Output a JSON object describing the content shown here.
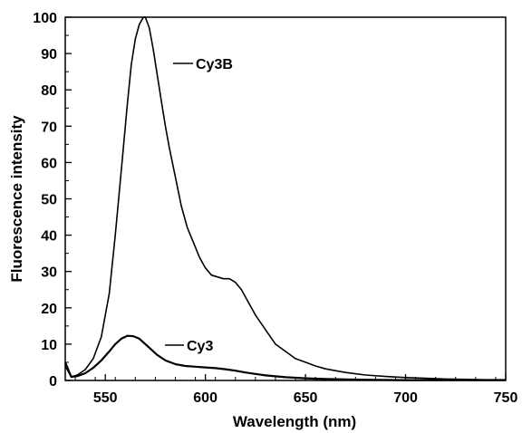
{
  "chart_data": {
    "type": "line",
    "title": "",
    "xlabel": "Wavelength (nm)",
    "ylabel": "Fluorescence intensity",
    "xlim": [
      530,
      750
    ],
    "ylim": [
      0,
      100
    ],
    "x_ticks": [
      550,
      600,
      650,
      700,
      750
    ],
    "y_ticks": [
      0,
      10,
      20,
      30,
      40,
      50,
      60,
      70,
      80,
      90,
      100
    ],
    "grid": false,
    "series": [
      {
        "name": "Cy3B",
        "x": [
          530,
          533,
          536,
          540,
          544,
          548,
          552,
          555,
          558,
          561,
          563,
          565,
          567,
          569,
          570,
          572,
          574,
          576,
          578,
          580,
          582,
          585,
          588,
          591,
          594,
          597,
          600,
          603,
          606,
          609,
          612,
          615,
          618,
          621,
          625,
          630,
          635,
          640,
          645,
          650,
          655,
          660,
          665,
          670,
          680,
          690,
          700,
          710,
          720,
          730,
          740,
          750
        ],
        "y": [
          4,
          1,
          1.5,
          3,
          6,
          12,
          24,
          40,
          58,
          76,
          87,
          94,
          98,
          100,
          100,
          97,
          91,
          84,
          77,
          70,
          64,
          56,
          48,
          42,
          38,
          34,
          31,
          29,
          28.5,
          28,
          28,
          27,
          25,
          22,
          18,
          14,
          10,
          8,
          6,
          5,
          4,
          3.2,
          2.7,
          2.2,
          1.5,
          1.1,
          0.8,
          0.6,
          0.4,
          0.3,
          0.2,
          0.2
        ]
      },
      {
        "name": "Cy3",
        "x": [
          530,
          533,
          536,
          540,
          544,
          548,
          552,
          555,
          558,
          561,
          564,
          567,
          570,
          573,
          576,
          580,
          585,
          590,
          595,
          600,
          605,
          610,
          615,
          620,
          625,
          630,
          640,
          650,
          660,
          680,
          700,
          720,
          750
        ],
        "y": [
          5,
          1,
          1.2,
          2,
          3.5,
          5.5,
          8,
          10,
          11.5,
          12.3,
          12.2,
          11.5,
          10,
          8.5,
          7,
          5.5,
          4.5,
          4,
          3.8,
          3.6,
          3.4,
          3.1,
          2.7,
          2.2,
          1.8,
          1.4,
          0.9,
          0.6,
          0.4,
          0.2,
          0.1,
          0.1,
          0.1
        ]
      }
    ],
    "annotations": [
      {
        "text": "Cy3B",
        "series": "Cy3B"
      },
      {
        "text": "Cy3",
        "series": "Cy3"
      }
    ]
  }
}
